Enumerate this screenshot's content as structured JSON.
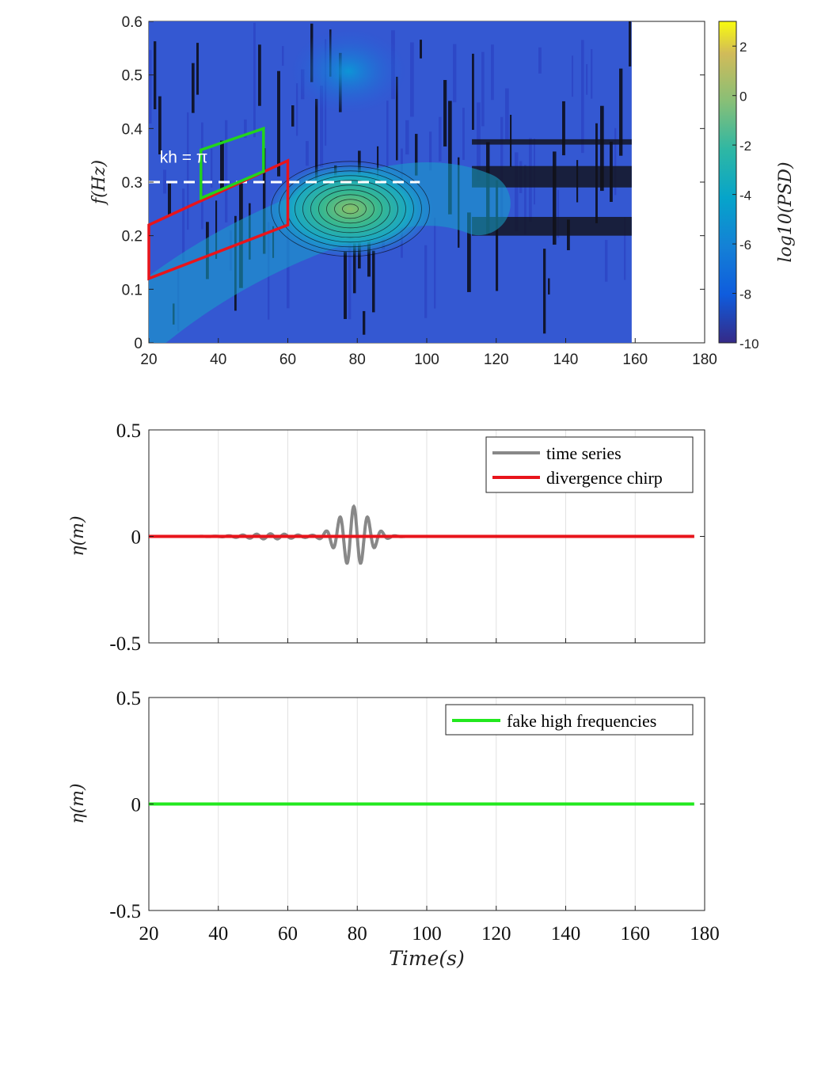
{
  "chart_data": [
    {
      "type": "heatmap",
      "subtype": "contour spectrogram",
      "xlim": [
        20,
        180
      ],
      "ylim": [
        0,
        0.6
      ],
      "xticks": [
        "20",
        "40",
        "60",
        "80",
        "100",
        "120",
        "140",
        "160",
        "180"
      ],
      "yticks": [
        "0",
        "0.1",
        "0.2",
        "0.3",
        "0.4",
        "0.5",
        "0.6"
      ],
      "ylabel": "f(Hz)",
      "colorbar": {
        "label": "log10(PSD)",
        "range": [
          -10,
          3
        ],
        "ticks": [
          "2",
          "0",
          "-2",
          "-4",
          "-6",
          "-8",
          "-10"
        ]
      },
      "data_extent": {
        "x": [
          20,
          159
        ],
        "y": [
          0,
          0.6
        ]
      },
      "peak": {
        "x": 78,
        "y": 0.25,
        "value": -2
      },
      "annotation": {
        "text": "kh = π",
        "x": 22,
        "y": 0.345
      },
      "kh_line": {
        "y": 0.3,
        "x": [
          20,
          98
        ],
        "style": "dashed",
        "color": "#ffffff"
      },
      "red_region": {
        "points": [
          [
            20,
            0.12
          ],
          [
            20,
            0.22
          ],
          [
            60,
            0.34
          ],
          [
            60,
            0.22
          ]
        ],
        "color": "#e8141b"
      },
      "green_region": {
        "points": [
          [
            35,
            0.27
          ],
          [
            35,
            0.36
          ],
          [
            53,
            0.4
          ],
          [
            53,
            0.32
          ]
        ],
        "color": "#22d31e"
      }
    },
    {
      "type": "line",
      "xlim": [
        20,
        180
      ],
      "ylim": [
        -0.5,
        0.5
      ],
      "yticks": [
        "0.5",
        "0",
        "-0.5"
      ],
      "ylabel": "η(m)",
      "grid": true,
      "legend_position": "top-right",
      "series": [
        {
          "name": "time series",
          "color": "#888888",
          "x_end": 177,
          "packet_center": 79,
          "packet_amplitude": 0.14,
          "frequency": 0.25
        },
        {
          "name": "divergence chirp",
          "color": "#e8141b",
          "x_end": 177,
          "value": 0
        }
      ]
    },
    {
      "type": "line",
      "xlim": [
        20,
        180
      ],
      "ylim": [
        -0.5,
        0.5
      ],
      "xticks": [
        "20",
        "40",
        "60",
        "80",
        "100",
        "120",
        "140",
        "160",
        "180"
      ],
      "yticks": [
        "0.5",
        "0",
        "-0.5"
      ],
      "xlabel": "Time(s)",
      "ylabel": "η(m)",
      "grid": true,
      "legend_position": "top-right",
      "series": [
        {
          "name": "fake high frequencies",
          "color": "#22e81e",
          "x_end": 177,
          "value": 0
        }
      ]
    }
  ]
}
